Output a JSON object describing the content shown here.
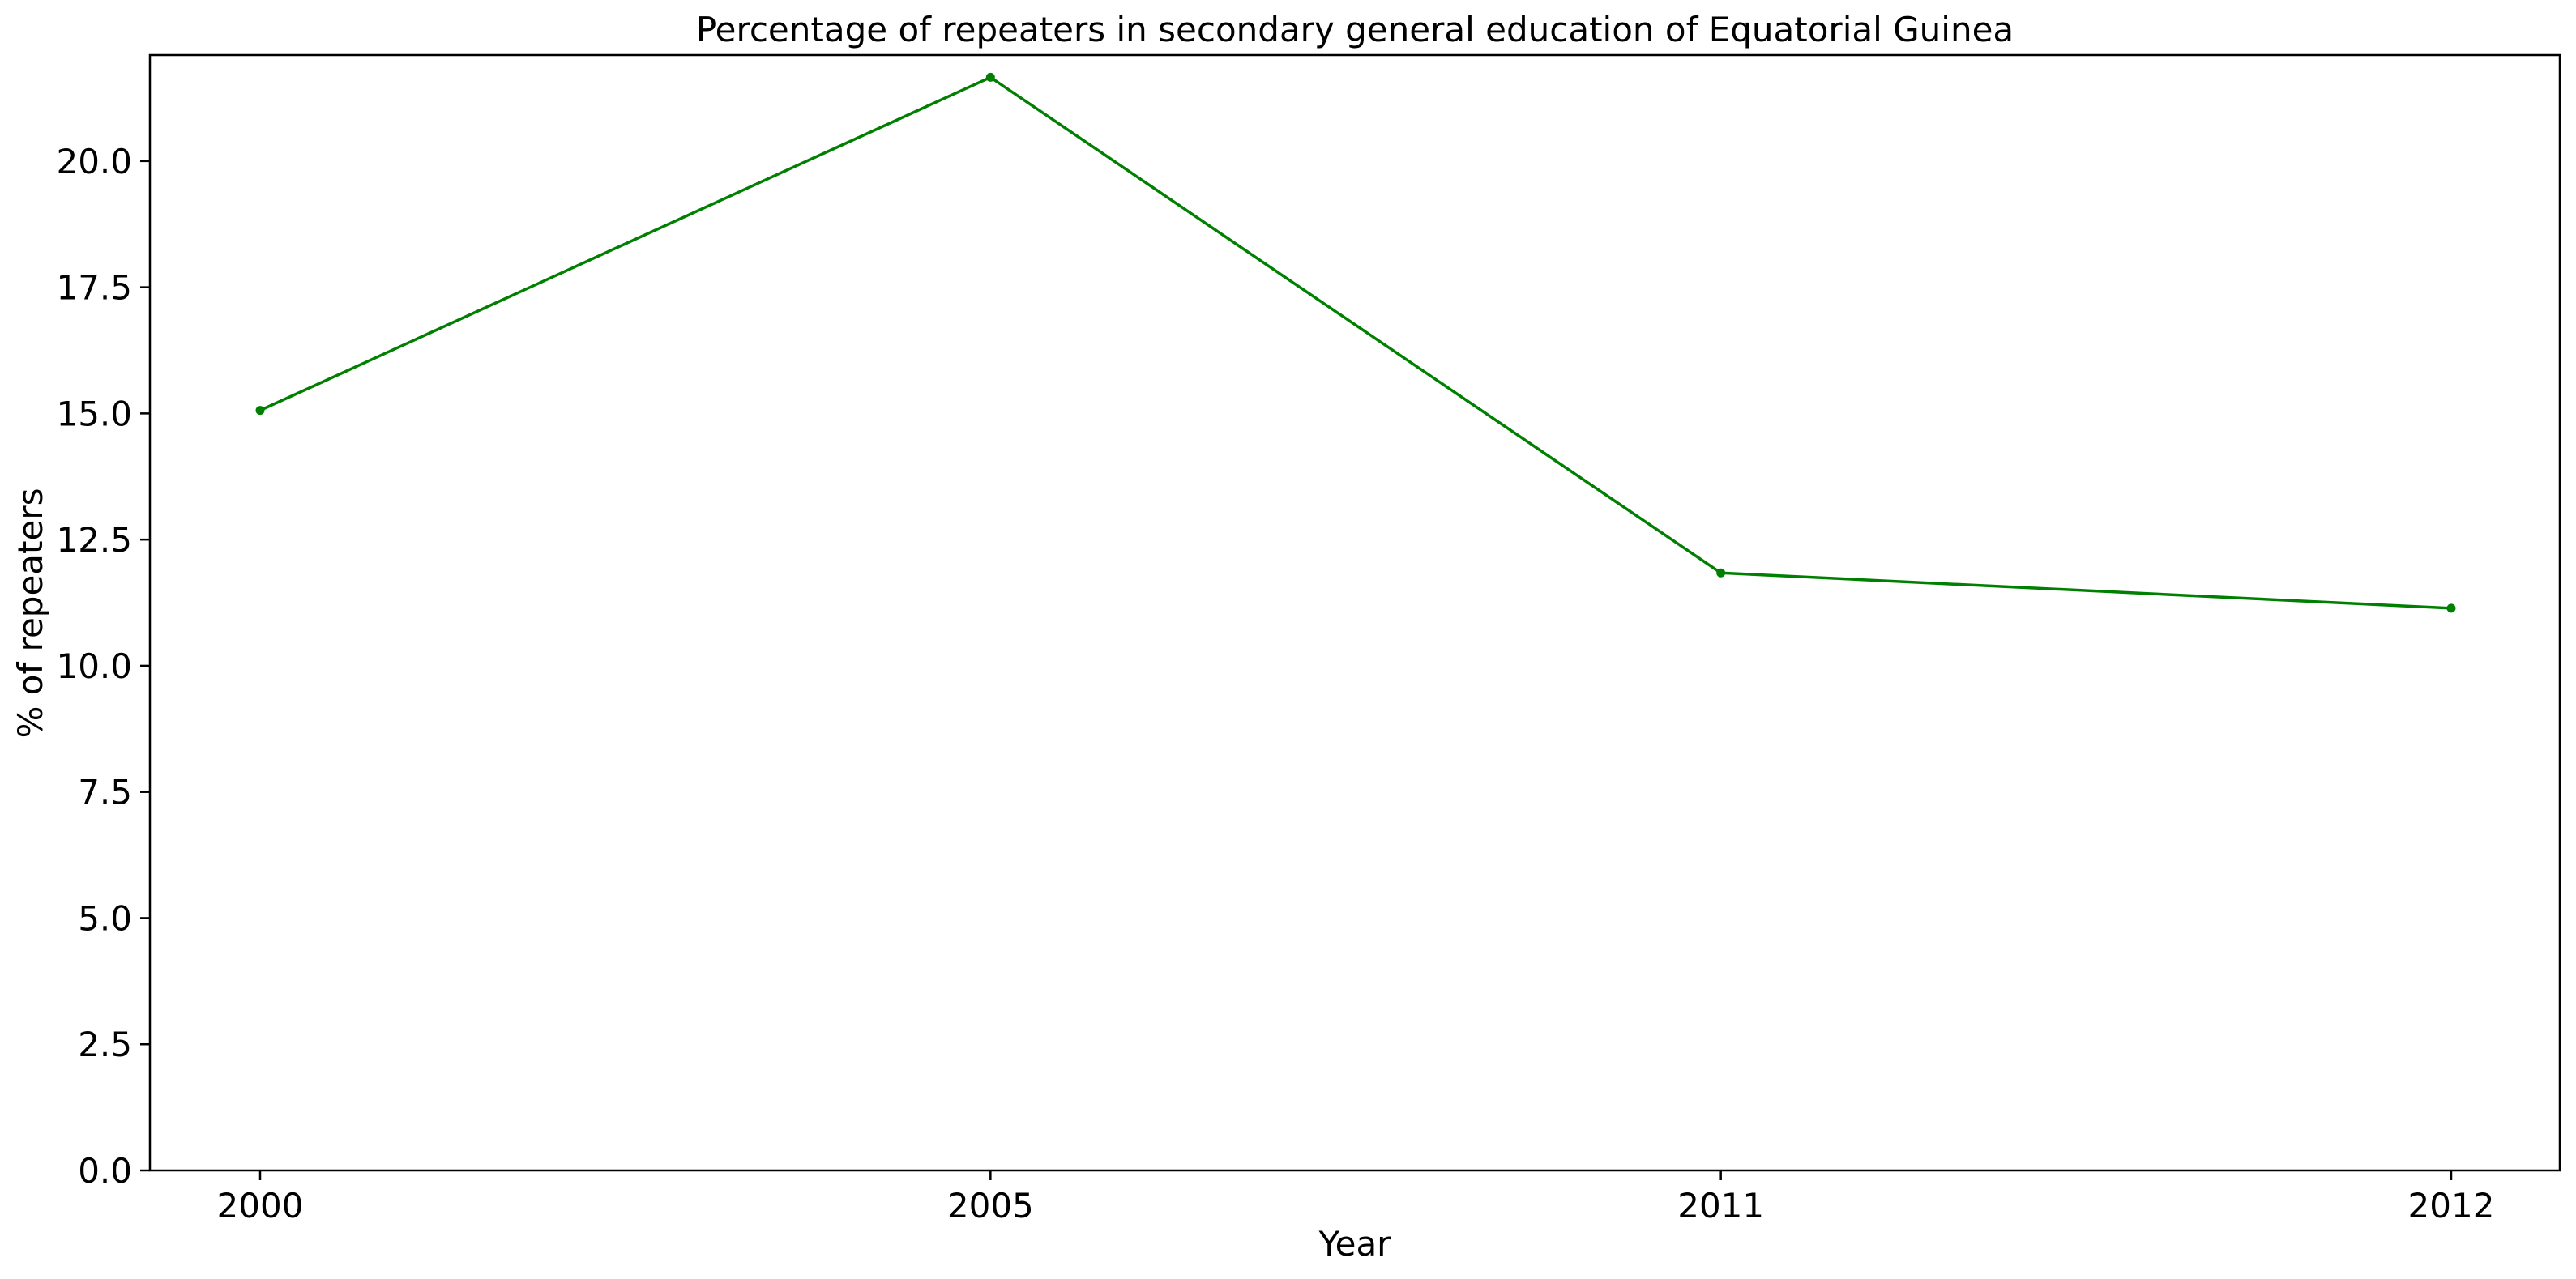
{
  "chart_data": {
    "type": "line",
    "title": "Percentage of repeaters in secondary general education of Equatorial Guinea",
    "xlabel": "Year",
    "ylabel": "% of repeaters",
    "categories": [
      "2000",
      "2005",
      "2011",
      "2012"
    ],
    "series": [
      {
        "values": [
          15.06,
          21.66,
          11.84,
          11.14
        ],
        "color": "#008000"
      }
    ],
    "ylim": [
      0,
      22.1
    ],
    "yticks": [
      0.0,
      2.5,
      5.0,
      7.5,
      10.0,
      12.5,
      15.0,
      17.5,
      20.0
    ],
    "ytick_labels": [
      "0.0",
      "2.5",
      "5.0",
      "7.5",
      "10.0",
      "12.5",
      "15.0",
      "17.5",
      "20.0"
    ],
    "grid": false,
    "legend": "none"
  }
}
